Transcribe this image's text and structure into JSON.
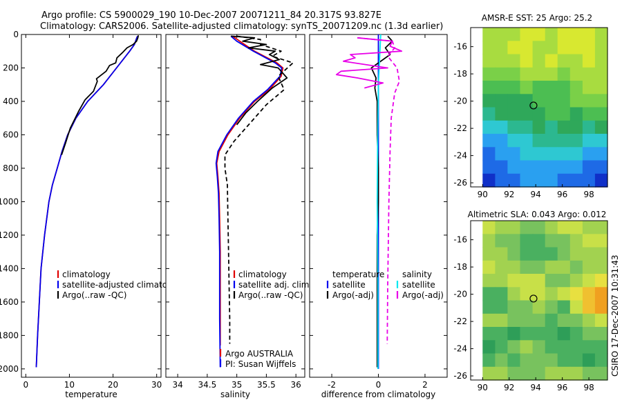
{
  "header": {
    "title_line1": "Argo profile: CS 5900029_190 10-Dec-2007 20071211_84 20.317S 93.827E",
    "title_line2": "Climatology: CARS2006. Satellite-adjusted climatology: synTS_20071209.nc (1.3d earlier)"
  },
  "side_text": "CSIRO 17-Dec-2007 10:31:43",
  "colors": {
    "climatology": "#e00000",
    "satellite": "#0000ee",
    "argo": "#000000",
    "satellite_salinity": "#00e8f0",
    "argo_salinity": "#e800e8",
    "map_marker": "#000000"
  },
  "chart_data": [
    {
      "id": "temperature",
      "type": "line",
      "xlabel": "temperature",
      "ylabel": "",
      "xlim": [
        -1,
        31
      ],
      "ylim": [
        2050,
        0
      ],
      "xticks": [
        0,
        10,
        20,
        30
      ],
      "yticks": [
        0,
        200,
        400,
        600,
        800,
        1000,
        1200,
        1400,
        1600,
        1800,
        2000
      ],
      "legend": {
        "position": "lower-right",
        "entries": [
          "climatology",
          "satellite-adjusted climatology",
          "Argo(..raw -QC)"
        ]
      },
      "series": [
        {
          "name": "climatology",
          "color": "climatology",
          "dash": "",
          "points": [
            [
              25.6,
              10
            ],
            [
              25.3,
              30
            ],
            [
              24.9,
              60
            ],
            [
              23.8,
              100
            ],
            [
              20.8,
              200
            ],
            [
              17.8,
              300
            ],
            [
              14.2,
              400
            ],
            [
              11.5,
              500
            ],
            [
              9.6,
              600
            ],
            [
              8.3,
              700
            ],
            [
              7.2,
              800
            ],
            [
              6.1,
              900
            ],
            [
              5.3,
              1000
            ],
            [
              4.3,
              1200
            ],
            [
              3.5,
              1400
            ],
            [
              3.1,
              1600
            ],
            [
              2.7,
              1800
            ],
            [
              2.4,
              1990
            ]
          ]
        },
        {
          "name": "satellite-adjusted climatology",
          "color": "satellite",
          "dash": "",
          "points": [
            [
              25.6,
              10
            ],
            [
              25.3,
              30
            ],
            [
              24.9,
              60
            ],
            [
              23.8,
              100
            ],
            [
              20.8,
              200
            ],
            [
              17.8,
              300
            ],
            [
              14.2,
              400
            ],
            [
              11.5,
              500
            ],
            [
              9.6,
              600
            ],
            [
              8.3,
              700
            ],
            [
              7.2,
              800
            ],
            [
              6.1,
              900
            ],
            [
              5.3,
              1000
            ],
            [
              4.3,
              1200
            ],
            [
              3.5,
              1400
            ],
            [
              3.1,
              1600
            ],
            [
              2.7,
              1800
            ],
            [
              2.4,
              1990
            ]
          ]
        },
        {
          "name": "Argo(..raw -QC)",
          "color": "argo",
          "dash": "",
          "points": [
            [
              25.8,
              5
            ],
            [
              25.7,
              20
            ],
            [
              25.4,
              40
            ],
            [
              24.6,
              60
            ],
            [
              23.2,
              80
            ],
            [
              22.1,
              110
            ],
            [
              20.9,
              140
            ],
            [
              20.6,
              170
            ],
            [
              19.2,
              185
            ],
            [
              18.4,
              220
            ],
            [
              16.2,
              265
            ],
            [
              16.4,
              280
            ],
            [
              15.5,
              340
            ],
            [
              13.6,
              390
            ],
            [
              12.1,
              460
            ],
            [
              10.2,
              560
            ],
            [
              9.1,
              650
            ],
            [
              8.2,
              720
            ]
          ]
        }
      ]
    },
    {
      "id": "salinity",
      "type": "line",
      "xlabel": "salinity",
      "ylabel": "",
      "xlim": [
        33.8,
        36.15
      ],
      "ylim": [
        2050,
        0
      ],
      "xticks": [
        34,
        34.5,
        35,
        35.5,
        36
      ],
      "tick_labels": [
        "34",
        "34.5",
        "35",
        "35.5",
        "36"
      ],
      "yticks": [
        0,
        200,
        400,
        600,
        800,
        1000,
        1200,
        1400,
        1600,
        1800,
        2000
      ],
      "legend": {
        "position": "lower-right",
        "entries": [
          "climatology",
          "satellite adj. clim.",
          "Argo(..raw -QC)"
        ]
      },
      "annotation_line1": "Argo AUSTRALIA",
      "annotation_line2": "PI: Susan Wijffels",
      "series": [
        {
          "name": "climatology",
          "color": "climatology",
          "dash": "",
          "points": [
            [
              34.93,
              10
            ],
            [
              35.05,
              40
            ],
            [
              35.3,
              100
            ],
            [
              35.68,
              170
            ],
            [
              35.78,
              200
            ],
            [
              35.75,
              250
            ],
            [
              35.55,
              330
            ],
            [
              35.3,
              400
            ],
            [
              35.05,
              500
            ],
            [
              34.85,
              600
            ],
            [
              34.7,
              700
            ],
            [
              34.66,
              770
            ],
            [
              34.68,
              850
            ],
            [
              34.7,
              950
            ],
            [
              34.71,
              1100
            ],
            [
              34.72,
              1300
            ],
            [
              34.72,
              1500
            ],
            [
              34.72,
              1700
            ],
            [
              34.72,
              1860
            ]
          ]
        },
        {
          "name": "satellite adj. clim.",
          "color": "satellite",
          "dash": "",
          "points": [
            [
              34.9,
              10
            ],
            [
              35.0,
              40
            ],
            [
              35.28,
              100
            ],
            [
              35.65,
              170
            ],
            [
              35.76,
              200
            ],
            [
              35.73,
              250
            ],
            [
              35.52,
              330
            ],
            [
              35.28,
              400
            ],
            [
              35.03,
              500
            ],
            [
              34.83,
              600
            ],
            [
              34.68,
              700
            ],
            [
              34.65,
              770
            ],
            [
              34.67,
              850
            ],
            [
              34.69,
              950
            ],
            [
              34.7,
              1100
            ],
            [
              34.71,
              1300
            ],
            [
              34.71,
              1500
            ],
            [
              34.71,
              1700
            ],
            [
              34.72,
              1990
            ]
          ]
        },
        {
          "name": "Argo(..raw -QC)",
          "color": "argo",
          "dash": "",
          "points": [
            [
              34.9,
              10
            ],
            [
              35.3,
              20
            ],
            [
              35.1,
              40
            ],
            [
              35.5,
              60
            ],
            [
              35.2,
              80
            ],
            [
              35.65,
              100
            ],
            [
              35.55,
              120
            ],
            [
              35.72,
              150
            ],
            [
              35.4,
              180
            ],
            [
              35.7,
              200
            ],
            [
              35.75,
              220
            ],
            [
              35.85,
              260
            ],
            [
              35.6,
              320
            ],
            [
              35.35,
              400
            ],
            [
              35.15,
              470
            ],
            [
              35.0,
              540
            ]
          ]
        },
        {
          "name": "Argo dashed",
          "color": "argo",
          "dash": "6,4",
          "points": [
            [
              35.0,
              10
            ],
            [
              35.4,
              30
            ],
            [
              35.4,
              60
            ],
            [
              35.75,
              100
            ],
            [
              35.6,
              130
            ],
            [
              35.95,
              170
            ],
            [
              35.7,
              250
            ],
            [
              35.8,
              330
            ],
            [
              35.5,
              420
            ],
            [
              35.25,
              520
            ],
            [
              34.95,
              640
            ],
            [
              34.8,
              720
            ],
            [
              34.8,
              800
            ],
            [
              34.84,
              900
            ],
            [
              34.85,
              1100
            ],
            [
              34.86,
              1300
            ],
            [
              34.87,
              1500
            ],
            [
              34.88,
              1700
            ],
            [
              34.88,
              1850
            ]
          ]
        }
      ]
    },
    {
      "id": "difference",
      "type": "line",
      "xlabel": "difference from climatology",
      "ylabel": "",
      "xlim": [
        -2.95,
        2.95
      ],
      "ylim": [
        2050,
        0
      ],
      "xticks": [
        -2,
        0,
        2
      ],
      "yticks": [
        0,
        200,
        400,
        600,
        800,
        1000,
        1200,
        1400,
        1600,
        1800,
        2000
      ],
      "legend_left": {
        "title": "temperature",
        "entries": [
          "satellite",
          "Argo(-adj)"
        ]
      },
      "legend_right": {
        "title": "salinity",
        "entries": [
          "satellite",
          "Argo(-adj)"
        ]
      },
      "series": [
        {
          "name": "temperature satellite",
          "color": "satellite",
          "dash": "",
          "points": [
            [
              0,
              0
            ],
            [
              0,
              2000
            ]
          ]
        },
        {
          "name": "temperature Argo(-adj)",
          "color": "argo",
          "dash": "",
          "points": [
            [
              0.4,
              10
            ],
            [
              0.6,
              40
            ],
            [
              0.3,
              80
            ],
            [
              0.5,
              120
            ],
            [
              -0.3,
              200
            ],
            [
              -0.1,
              260
            ],
            [
              -0.15,
              320
            ],
            [
              -0.05,
              400
            ],
            [
              -0.05,
              600
            ],
            [
              0.0,
              800
            ],
            [
              0.0,
              1000
            ],
            [
              -0.05,
              1200
            ],
            [
              -0.05,
              1500
            ],
            [
              -0.05,
              1800
            ],
            [
              -0.05,
              1990
            ]
          ]
        },
        {
          "name": "salinity satellite",
          "color": "satellite_salinity",
          "dash": "",
          "points": [
            [
              0.1,
              0
            ],
            [
              0.0,
              300
            ],
            [
              -0.03,
              600
            ],
            [
              -0.05,
              1000
            ],
            [
              -0.02,
              1500
            ],
            [
              -0.02,
              2000
            ]
          ]
        },
        {
          "name": "salinity Argo(-adj)",
          "color": "argo_salinity",
          "dash": "",
          "points": [
            [
              -0.9,
              20
            ],
            [
              0.6,
              40
            ],
            [
              0.5,
              70
            ],
            [
              1.0,
              100
            ],
            [
              -1.2,
              120
            ],
            [
              -1.0,
              140
            ],
            [
              -1.5,
              160
            ],
            [
              0.4,
              200
            ],
            [
              -1.6,
              220
            ],
            [
              -1.8,
              240
            ],
            [
              -0.9,
              260
            ],
            [
              0.2,
              290
            ],
            [
              -0.6,
              320
            ]
          ]
        },
        {
          "name": "salinity Argo dashed",
          "color": "argo_salinity",
          "dash": "6,4",
          "points": [
            [
              -0.9,
              20
            ],
            [
              0.6,
              40
            ],
            [
              0.7,
              80
            ],
            [
              0.4,
              130
            ],
            [
              0.8,
              200
            ],
            [
              0.9,
              280
            ],
            [
              0.7,
              350
            ],
            [
              0.55,
              500
            ],
            [
              0.5,
              700
            ],
            [
              0.45,
              1000
            ],
            [
              0.4,
              1500
            ],
            [
              0.38,
              1850
            ]
          ]
        }
      ]
    },
    {
      "id": "sst_map",
      "type": "heatmap",
      "title": "AMSR-E SST: 25 Argo: 25.2",
      "xlim": [
        89.1,
        99.4
      ],
      "ylim": [
        -26.3,
        -14.6
      ],
      "xticks": [
        90,
        92,
        94,
        96,
        98
      ],
      "yticks": [
        -16,
        -18,
        -20,
        -22,
        -24,
        -26
      ],
      "marker": [
        93.83,
        -20.32
      ],
      "colors": [
        "#1030c8",
        "#1e6ae6",
        "#2aa0f0",
        "#2ec8d2",
        "#2cb890",
        "#2fa85a",
        "#4cbe52",
        "#7ad048",
        "#a8dc40",
        "#d8e830"
      ],
      "rows": [
        "8889989998",
        "8899889998",
        "8889898898",
        "7778887888",
        "6667666788",
        "5555666777",
        "4555566566",
        "3344545545",
        "2233444433",
        "1223333322",
        "1122222211",
        "0112221110"
      ]
    },
    {
      "id": "sla_map",
      "type": "heatmap",
      "title": "Altimetric SLA: 0.043 Argo: 0.012",
      "xlim": [
        89.1,
        99.4
      ],
      "ylim": [
        -26.3,
        -14.6
      ],
      "xticks": [
        90,
        92,
        94,
        96,
        98
      ],
      "yticks": [
        -16,
        -18,
        -20,
        -22,
        -24,
        -26
      ],
      "marker": [
        93.83,
        -20.32
      ],
      "colors": [
        "#1e8a50",
        "#2e9e58",
        "#4ab060",
        "#78c25e",
        "#a2d250",
        "#c8e048",
        "#e8e040",
        "#f0c030",
        "#f0a020",
        "#e87818"
      ],
      "rows": [
        "5443345544",
        "4332233455",
        "4432223444",
        "5443344344",
        "4455533456",
        "2245545678",
        "2233432578",
        "4433323345",
        "2212221233",
        "1234322222",
        "2323332212",
        "4433344433"
      ]
    }
  ]
}
